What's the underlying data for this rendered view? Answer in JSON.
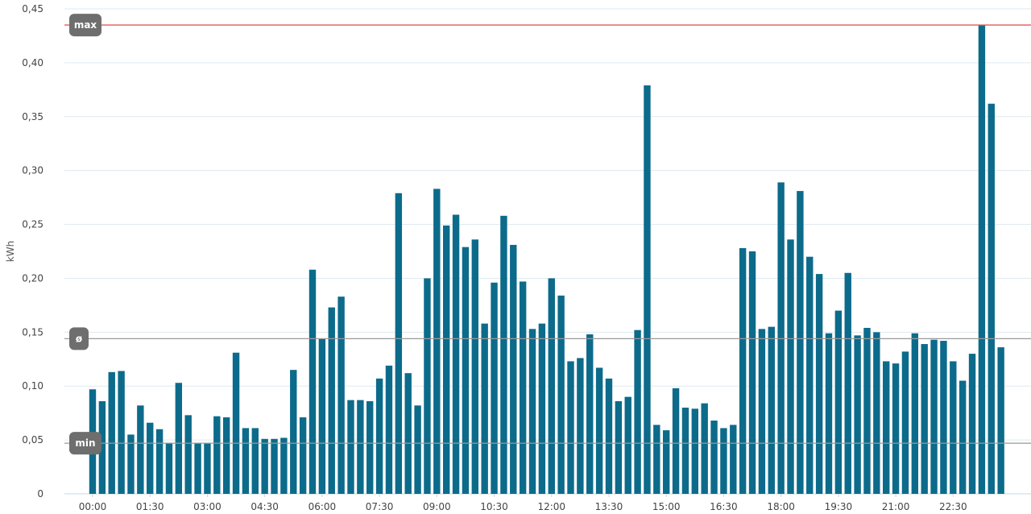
{
  "chart_data": {
    "type": "bar",
    "ylabel": "kWh",
    "ylim": [
      0,
      0.45
    ],
    "yticks": [
      "0",
      "0,05",
      "0,10",
      "0,15",
      "0,20",
      "0,25",
      "0,30",
      "0,35",
      "0,40",
      "0,45"
    ],
    "ytick_values": [
      0,
      0.05,
      0.1,
      0.15,
      0.2,
      0.25,
      0.3,
      0.35,
      0.4,
      0.45
    ],
    "xticks": [
      "00:00",
      "01:30",
      "03:00",
      "04:30",
      "06:00",
      "07:30",
      "09:00",
      "10:30",
      "12:00",
      "13:30",
      "15:00",
      "16:30",
      "18:00",
      "19:30",
      "21:00",
      "22:30"
    ],
    "interval_minutes": 15,
    "grid": true,
    "bar_color": "#0c6b8b",
    "values": [
      0.097,
      0.086,
      0.113,
      0.114,
      0.055,
      0.082,
      0.066,
      0.06,
      0.047,
      0.103,
      0.073,
      0.047,
      0.047,
      0.072,
      0.071,
      0.131,
      0.061,
      0.061,
      0.051,
      0.051,
      0.052,
      0.115,
      0.071,
      0.208,
      0.144,
      0.173,
      0.183,
      0.087,
      0.087,
      0.086,
      0.107,
      0.119,
      0.279,
      0.112,
      0.082,
      0.2,
      0.283,
      0.249,
      0.259,
      0.229,
      0.236,
      0.158,
      0.196,
      0.258,
      0.231,
      0.197,
      0.153,
      0.158,
      0.2,
      0.184,
      0.123,
      0.126,
      0.148,
      0.117,
      0.107,
      0.086,
      0.09,
      0.152,
      0.379,
      0.064,
      0.059,
      0.098,
      0.08,
      0.079,
      0.084,
      0.068,
      0.061,
      0.064,
      0.228,
      0.225,
      0.153,
      0.155,
      0.289,
      0.236,
      0.281,
      0.22,
      0.204,
      0.149,
      0.17,
      0.205,
      0.147,
      0.154,
      0.15,
      0.123,
      0.121,
      0.132,
      0.149,
      0.139,
      0.143,
      0.142,
      0.123,
      0.105,
      0.13,
      0.435,
      0.362,
      0.136
    ],
    "reference_lines": [
      {
        "label": "max",
        "value": 0.435,
        "color": "#e05a5a"
      },
      {
        "label": "ø",
        "value": 0.144,
        "color": "#999999"
      },
      {
        "label": "min",
        "value": 0.047,
        "color": "#999999"
      }
    ],
    "reference_label_color": "#6e6e6e",
    "grid_color": "#dfeaf0"
  }
}
